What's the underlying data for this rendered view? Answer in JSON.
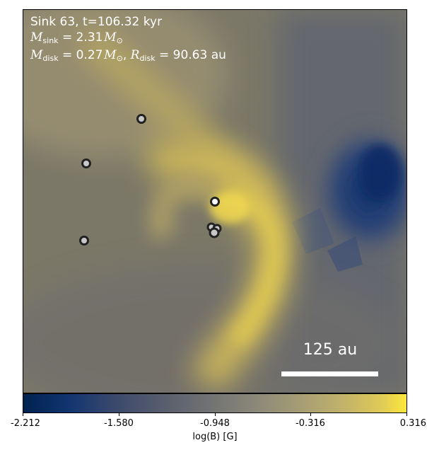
{
  "annotation": {
    "line1": "Sink 63, t=106.32 kyr",
    "m_sink_symbol": "M",
    "m_sink_sub": "sink",
    "m_sink_value": " = 2.31",
    "m_disk_symbol": "M",
    "m_disk_sub": "disk",
    "m_disk_value": " = 0.27",
    "r_disk_symbol": "R",
    "r_disk_sub": "disk",
    "r_disk_value": " = 90.63 au",
    "solar_unit": "M",
    "solar_sub": "⊙"
  },
  "scale_bar": {
    "label": "125 au"
  },
  "colorbar": {
    "label": "log(B) [G]",
    "ticks": [
      "-2.212",
      "-1.580",
      "-0.948",
      "-0.316",
      "0.316"
    ],
    "colors": [
      "#00224e",
      "#575d6d",
      "#8a8779",
      "#fee838"
    ]
  },
  "sinks_count_shown": 7
}
